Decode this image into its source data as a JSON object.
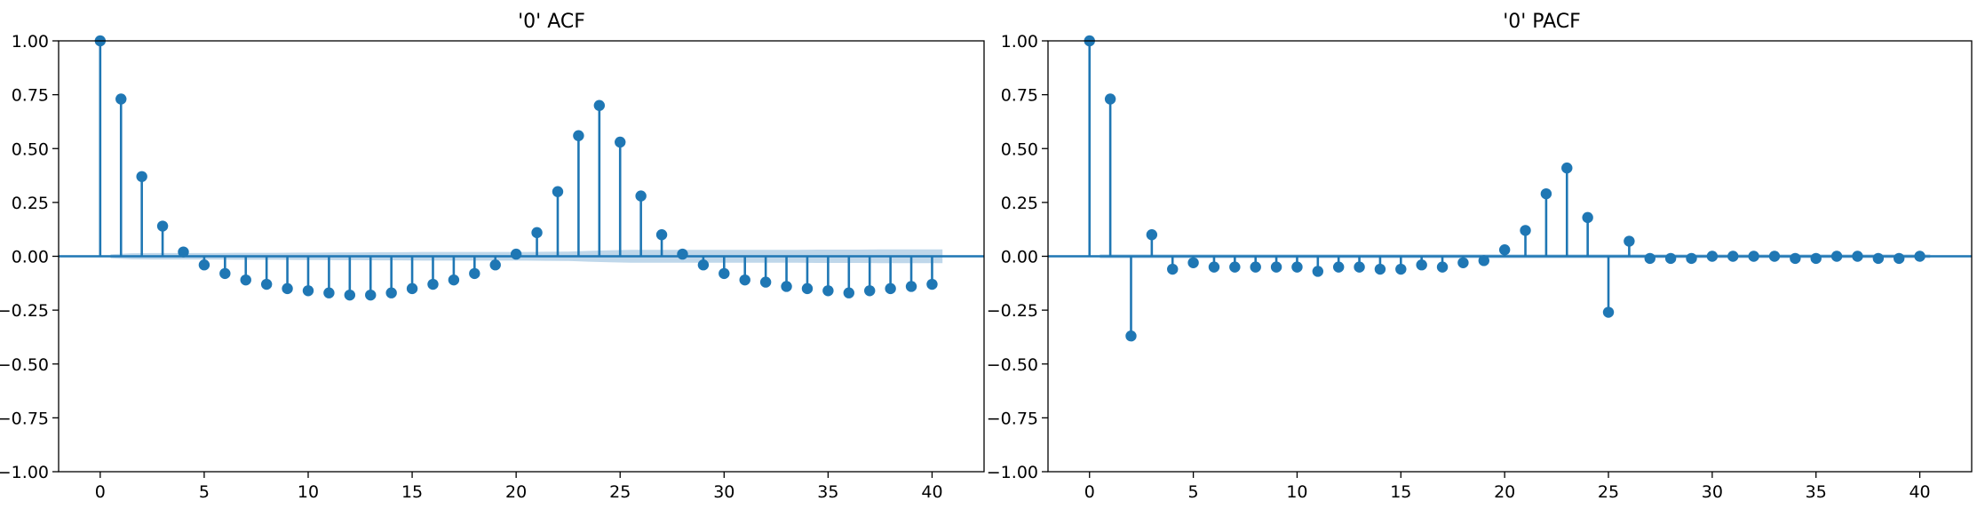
{
  "chart_data": [
    {
      "type": "stem",
      "title": "'0' ACF",
      "xlabel": "",
      "ylabel": "",
      "xlim": [
        -2,
        42.5
      ],
      "ylim": [
        -1.0,
        1.0
      ],
      "xticks": [
        0,
        5,
        10,
        15,
        20,
        25,
        30,
        35,
        40
      ],
      "yticks": [
        -1.0,
        -0.75,
        -0.5,
        -0.25,
        0.0,
        0.25,
        0.5,
        0.75,
        1.0
      ],
      "ytick_labels": [
        "−1.00",
        "−0.75",
        "−0.50",
        "−0.25",
        "0.00",
        "0.25",
        "0.50",
        "0.75",
        "1.00"
      ],
      "grid": false,
      "color": "#1f77b4",
      "confidence_band_color": "#a9c9e3",
      "lags": [
        0,
        1,
        2,
        3,
        4,
        5,
        6,
        7,
        8,
        9,
        10,
        11,
        12,
        13,
        14,
        15,
        16,
        17,
        18,
        19,
        20,
        21,
        22,
        23,
        24,
        25,
        26,
        27,
        28,
        29,
        30,
        31,
        32,
        33,
        34,
        35,
        36,
        37,
        38,
        39,
        40
      ],
      "values": [
        1.0,
        0.73,
        0.37,
        0.14,
        0.02,
        -0.04,
        -0.08,
        -0.11,
        -0.13,
        -0.15,
        -0.16,
        -0.17,
        -0.18,
        -0.18,
        -0.17,
        -0.15,
        -0.13,
        -0.11,
        -0.08,
        -0.04,
        0.01,
        0.11,
        0.3,
        0.56,
        0.7,
        0.53,
        0.28,
        0.1,
        0.01,
        -0.04,
        -0.08,
        -0.11,
        -0.12,
        -0.14,
        -0.15,
        -0.16,
        -0.17,
        -0.16,
        -0.15,
        -0.14,
        -0.13
      ],
      "confidence_band": [
        0.0,
        0.009,
        0.014,
        0.015,
        0.015,
        0.015,
        0.015,
        0.016,
        0.016,
        0.016,
        0.017,
        0.017,
        0.018,
        0.018,
        0.019,
        0.019,
        0.02,
        0.02,
        0.02,
        0.02,
        0.02,
        0.02,
        0.021,
        0.022,
        0.025,
        0.028,
        0.03,
        0.03,
        0.03,
        0.03,
        0.03,
        0.03,
        0.03,
        0.03,
        0.03,
        0.031,
        0.031,
        0.031,
        0.032,
        0.032,
        0.032
      ]
    },
    {
      "type": "stem",
      "title": "'0' PACF",
      "xlabel": "",
      "ylabel": "",
      "xlim": [
        -2,
        42.5
      ],
      "ylim": [
        -1.0,
        1.0
      ],
      "xticks": [
        0,
        5,
        10,
        15,
        20,
        25,
        30,
        35,
        40
      ],
      "yticks": [
        -1.0,
        -0.75,
        -0.5,
        -0.25,
        0.0,
        0.25,
        0.5,
        0.75,
        1.0
      ],
      "ytick_labels": [
        "−1.00",
        "−0.75",
        "−0.50",
        "−0.25",
        "0.00",
        "0.25",
        "0.50",
        "0.75",
        "1.00"
      ],
      "grid": false,
      "color": "#1f77b4",
      "confidence_band_color": "#a9c9e3",
      "lags": [
        0,
        1,
        2,
        3,
        4,
        5,
        6,
        7,
        8,
        9,
        10,
        11,
        12,
        13,
        14,
        15,
        16,
        17,
        18,
        19,
        20,
        21,
        22,
        23,
        24,
        25,
        26,
        27,
        28,
        29,
        30,
        31,
        32,
        33,
        34,
        35,
        36,
        37,
        38,
        39,
        40
      ],
      "values": [
        1.0,
        0.73,
        -0.37,
        0.1,
        -0.06,
        -0.03,
        -0.05,
        -0.05,
        -0.05,
        -0.05,
        -0.05,
        -0.07,
        -0.05,
        -0.05,
        -0.06,
        -0.06,
        -0.04,
        -0.05,
        -0.03,
        -0.02,
        0.03,
        0.12,
        0.29,
        0.41,
        0.18,
        -0.26,
        0.07,
        -0.01,
        -0.01,
        -0.01,
        0.0,
        0.0,
        0.0,
        0.0,
        -0.01,
        -0.01,
        0.0,
        0.0,
        -0.01,
        -0.01,
        0.0
      ],
      "confidence_band": [
        0.0,
        0.009,
        0.009,
        0.009,
        0.009,
        0.009,
        0.009,
        0.009,
        0.009,
        0.009,
        0.009,
        0.009,
        0.009,
        0.009,
        0.009,
        0.009,
        0.009,
        0.009,
        0.009,
        0.009,
        0.009,
        0.009,
        0.009,
        0.009,
        0.009,
        0.009,
        0.009,
        0.009,
        0.009,
        0.009,
        0.009,
        0.009,
        0.009,
        0.009,
        0.009,
        0.009,
        0.009,
        0.009,
        0.009,
        0.009,
        0.009
      ]
    }
  ]
}
